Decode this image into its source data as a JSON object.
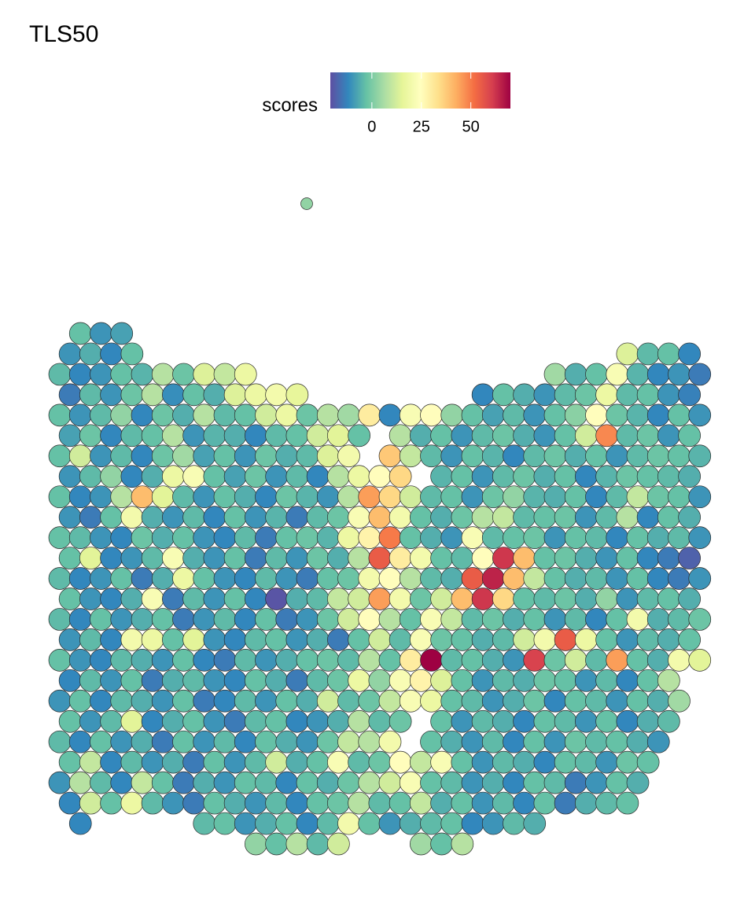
{
  "chart_data": {
    "type": "spatial",
    "title": "TLS50",
    "legend_title": "scores",
    "colorbar": {
      "lim": [
        -21,
        70
      ],
      "ticks": [
        0,
        25,
        50
      ],
      "palette": [
        "#5E4FA2",
        "#3288BD",
        "#66C2A5",
        "#ABDDA4",
        "#E6F598",
        "#FFFFBF",
        "#FEE08B",
        "#FDAE61",
        "#F46D43",
        "#D53E4F",
        "#9E0142"
      ]
    },
    "outlier": {
      "values": [
        3
      ]
    },
    "rows": [
      {
        "values": [
          null,
          -3,
          -10,
          -8
        ]
      },
      {
        "values": [
          -10,
          -6,
          -12,
          -3,
          null,
          null,
          null,
          null,
          null,
          null,
          null,
          null,
          null,
          null,
          null,
          null,
          null,
          null,
          null,
          null,
          null,
          null,
          null,
          null,
          null,
          null,
          null,
          14,
          -4,
          -3,
          -12
        ]
      },
      {
        "values": [
          -4,
          -12,
          -10,
          -3,
          -5,
          8,
          -2,
          14,
          10,
          18,
          null,
          null,
          null,
          null,
          null,
          null,
          null,
          null,
          null,
          null,
          null,
          null,
          null,
          null,
          5,
          -6,
          -3,
          22,
          -5,
          -12,
          -10,
          -14
        ]
      },
      {
        "values": [
          -14,
          -4,
          -10,
          -2,
          8,
          -11,
          -3,
          -6,
          14,
          18,
          20,
          16,
          null,
          null,
          null,
          null,
          null,
          null,
          null,
          null,
          -12,
          -3,
          -6,
          -10,
          -4,
          -2,
          18,
          -4,
          -3,
          -10,
          -13
        ]
      },
      {
        "values": [
          -3,
          -10,
          -4,
          3,
          -12,
          -2,
          -6,
          8,
          -4,
          -3,
          12,
          18,
          -2,
          8,
          5,
          30,
          -12,
          22,
          25,
          3,
          -3,
          -8,
          -4,
          -10,
          -3,
          2,
          25,
          -2,
          -5,
          -12,
          -3,
          -10
        ]
      },
      {
        "values": [
          -8,
          -2,
          -12,
          -4,
          -3,
          8,
          -10,
          -5,
          -6,
          -12,
          -4,
          -3,
          12,
          15,
          -3,
          null,
          8,
          -6,
          -3,
          -10,
          -4,
          -2,
          -6,
          -10,
          -3,
          12,
          48,
          -4,
          -2,
          -10,
          -3
        ]
      },
      {
        "values": [
          -3,
          12,
          -10,
          -4,
          -12,
          -2,
          5,
          -8,
          -3,
          -10,
          -2,
          -6,
          -4,
          14,
          20,
          null,
          38,
          10,
          -4,
          -10,
          -3,
          -5,
          -12,
          -4,
          -2,
          -6,
          -3,
          -10,
          -4,
          -2,
          -3,
          -5
        ]
      },
      {
        "values": [
          -10,
          -4,
          3,
          -12,
          -6,
          18,
          22,
          -3,
          -8,
          -2,
          -10,
          -4,
          -12,
          8,
          18,
          25,
          35,
          null,
          -5,
          -3,
          -10,
          -4,
          -2,
          -6,
          -3,
          -12,
          -5,
          -2,
          -3,
          -4,
          -6
        ]
      },
      {
        "values": [
          -3,
          -12,
          -10,
          8,
          40,
          15,
          -4,
          -10,
          -3,
          -6,
          -12,
          -2,
          -5,
          -10,
          8,
          45,
          35,
          12,
          -4,
          -3,
          -10,
          -2,
          3,
          -5,
          -6,
          -3,
          -12,
          -4,
          10,
          -2,
          -3,
          -10
        ]
      },
      {
        "values": [
          -10,
          -14,
          -3,
          20,
          -6,
          -10,
          -4,
          -12,
          -3,
          -10,
          -5,
          -14,
          -4,
          -2,
          22,
          40,
          20,
          -3,
          -6,
          -2,
          8,
          10,
          -4,
          -3,
          -2,
          -10,
          -4,
          8,
          -12,
          -3,
          -6
        ]
      },
      {
        "values": [
          -3,
          -4,
          -10,
          -12,
          -2,
          -6,
          -3,
          -10,
          -12,
          -4,
          -14,
          -3,
          -2,
          -5,
          18,
          28,
          50,
          -3,
          -6,
          -10,
          22,
          -4,
          -3,
          -2,
          -10,
          -3,
          -4,
          -12,
          -3,
          -6,
          -4,
          -10
        ]
      },
      {
        "values": [
          -3,
          15,
          -12,
          -10,
          -4,
          22,
          -6,
          -10,
          -3,
          -14,
          -4,
          -10,
          -2,
          -6,
          8,
          55,
          30,
          20,
          -3,
          -4,
          25,
          62,
          40,
          -3,
          -2,
          -6,
          -10,
          -3,
          -12,
          -14,
          -18
        ]
      },
      {
        "values": [
          -4,
          -12,
          -10,
          -3,
          -14,
          -6,
          18,
          -3,
          -10,
          -12,
          -4,
          -10,
          -14,
          -3,
          -2,
          20,
          25,
          8,
          -4,
          -6,
          55,
          65,
          40,
          10,
          -3,
          -6,
          -4,
          -10,
          -3,
          -12,
          -14,
          -10
        ]
      },
      {
        "values": [
          -3,
          -10,
          -12,
          -6,
          22,
          -14,
          -4,
          -10,
          -3,
          -12,
          -20,
          -6,
          -4,
          10,
          12,
          45,
          20,
          -2,
          12,
          40,
          62,
          35,
          -3,
          -4,
          -2,
          -6,
          3,
          -10,
          -4,
          -3,
          -6
        ]
      },
      {
        "values": [
          -4,
          -12,
          -3,
          -10,
          -6,
          -3,
          -14,
          -10,
          -4,
          -12,
          -3,
          -14,
          -10,
          -2,
          12,
          25,
          8,
          -3,
          22,
          10,
          -4,
          -2,
          -6,
          -3,
          -10,
          -4,
          -12,
          -3,
          20,
          -6,
          -4,
          -2
        ]
      },
      {
        "values": [
          -10,
          -4,
          -12,
          20,
          18,
          -3,
          15,
          -10,
          -12,
          -4,
          -3,
          -10,
          -6,
          -14,
          -3,
          12,
          -4,
          22,
          -2,
          -3,
          -6,
          -4,
          12,
          20,
          55,
          18,
          -3,
          -10,
          -4,
          -6,
          -3
        ]
      },
      {
        "values": [
          -3,
          -10,
          -12,
          -4,
          -6,
          -10,
          -3,
          -12,
          -14,
          -4,
          -10,
          -6,
          -3,
          -2,
          -4,
          8,
          -3,
          30,
          70,
          -4,
          -3,
          -6,
          -10,
          60,
          -2,
          12,
          -4,
          45,
          -3,
          -6,
          20,
          15
        ]
      },
      {
        "values": [
          -12,
          -4,
          -10,
          -3,
          -14,
          -6,
          -4,
          -10,
          -12,
          -3,
          -6,
          -14,
          -4,
          -2,
          18,
          3,
          22,
          28,
          14,
          -3,
          -10,
          -4,
          -6,
          -2,
          -3,
          -10,
          -4,
          -12,
          -3,
          8
        ]
      },
      {
        "values": [
          -10,
          -3,
          -12,
          -4,
          -6,
          -10,
          -3,
          -14,
          -12,
          -4,
          -10,
          -3,
          -6,
          12,
          -4,
          -2,
          10,
          22,
          18,
          -3,
          -4,
          -10,
          -6,
          -2,
          -12,
          -3,
          -4,
          -10,
          -3,
          -6,
          5
        ]
      },
      {
        "values": [
          -3,
          -10,
          -4,
          15,
          -12,
          -6,
          -3,
          -10,
          -14,
          -4,
          -3,
          -12,
          -10,
          -6,
          8,
          -4,
          -2,
          null,
          -3,
          -10,
          -4,
          -6,
          -12,
          -3,
          -4,
          -10,
          -3,
          -12,
          -6,
          -4
        ]
      },
      {
        "values": [
          -4,
          -12,
          -3,
          -10,
          -6,
          -14,
          -3,
          -10,
          -4,
          -12,
          -3,
          -6,
          -10,
          -2,
          10,
          8,
          20,
          null,
          -3,
          -6,
          -10,
          -4,
          -12,
          -3,
          -10,
          -2,
          -4,
          -3,
          -6,
          -10
        ]
      },
      {
        "values": [
          -3,
          10,
          -12,
          -4,
          -10,
          -6,
          -14,
          -3,
          -10,
          -4,
          12,
          -6,
          -3,
          22,
          -4,
          -2,
          25,
          10,
          22,
          -3,
          -10,
          -4,
          -6,
          -12,
          -3,
          -4,
          -10,
          -2,
          -3
        ]
      },
      {
        "values": [
          -10,
          8,
          -4,
          -12,
          10,
          -3,
          -14,
          -6,
          -10,
          -3,
          -4,
          -12,
          -3,
          -6,
          -2,
          8,
          12,
          22,
          -3,
          -4,
          -10,
          -6,
          -12,
          -3,
          -4,
          -14,
          -10,
          -3,
          -6
        ]
      },
      {
        "values": [
          -12,
          12,
          -3,
          18,
          -4,
          -10,
          -14,
          -3,
          -6,
          -10,
          -4,
          -12,
          -3,
          -2,
          8,
          -4,
          -3,
          10,
          -6,
          -3,
          -10,
          -4,
          -12,
          -3,
          -14,
          -6,
          -4,
          -3
        ]
      },
      {
        "values": [
          null,
          -12,
          null,
          null,
          null,
          null,
          null,
          -4,
          -3,
          -10,
          -6,
          -3,
          -12,
          -4,
          20,
          -3,
          -10,
          -6,
          -4,
          -3,
          -12,
          -10,
          -4,
          -6
        ]
      },
      {
        "values": [
          null,
          null,
          null,
          null,
          null,
          null,
          null,
          null,
          null,
          3,
          -3,
          8,
          -4,
          12,
          null,
          null,
          null,
          5,
          -3,
          8
        ]
      }
    ]
  }
}
